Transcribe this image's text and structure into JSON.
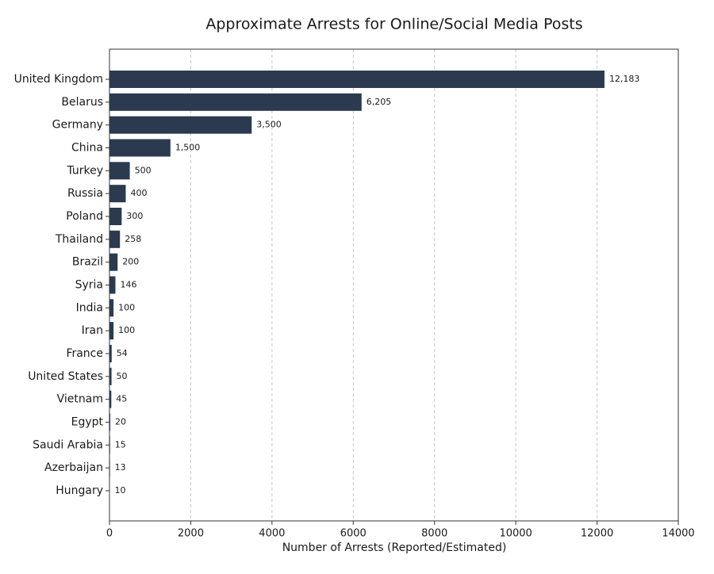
{
  "chart_data": {
    "type": "bar",
    "orientation": "horizontal",
    "title": "Approximate Arrests for Online/Social Media Posts",
    "x_label": "Number of Arrests (Reported/Estimated)",
    "categories": [
      "United Kingdom",
      "Belarus",
      "Germany",
      "China",
      "Turkey",
      "Russia",
      "Poland",
      "Thailand",
      "Brazil",
      "Syria",
      "India",
      "Iran",
      "France",
      "United States",
      "Vietnam",
      "Egypt",
      "Saudi Arabia",
      "Azerbaijan",
      "Hungary"
    ],
    "values": [
      12183,
      6205,
      3500,
      1500,
      500,
      400,
      300,
      258,
      200,
      146,
      100,
      100,
      54,
      50,
      45,
      20,
      15,
      13,
      10
    ],
    "value_labels": [
      "12,183",
      "6,205",
      "3,500",
      "1,500",
      "500",
      "400",
      "300",
      "258",
      "200",
      "146",
      "100",
      "100",
      "54",
      "50",
      "45",
      "20",
      "15",
      "13",
      "10"
    ],
    "color": "#2b3a4e",
    "xlim": [
      0,
      14000
    ],
    "xticks": [
      0,
      2000,
      4000,
      6000,
      8000,
      10000,
      12000,
      14000
    ],
    "grid": true
  }
}
